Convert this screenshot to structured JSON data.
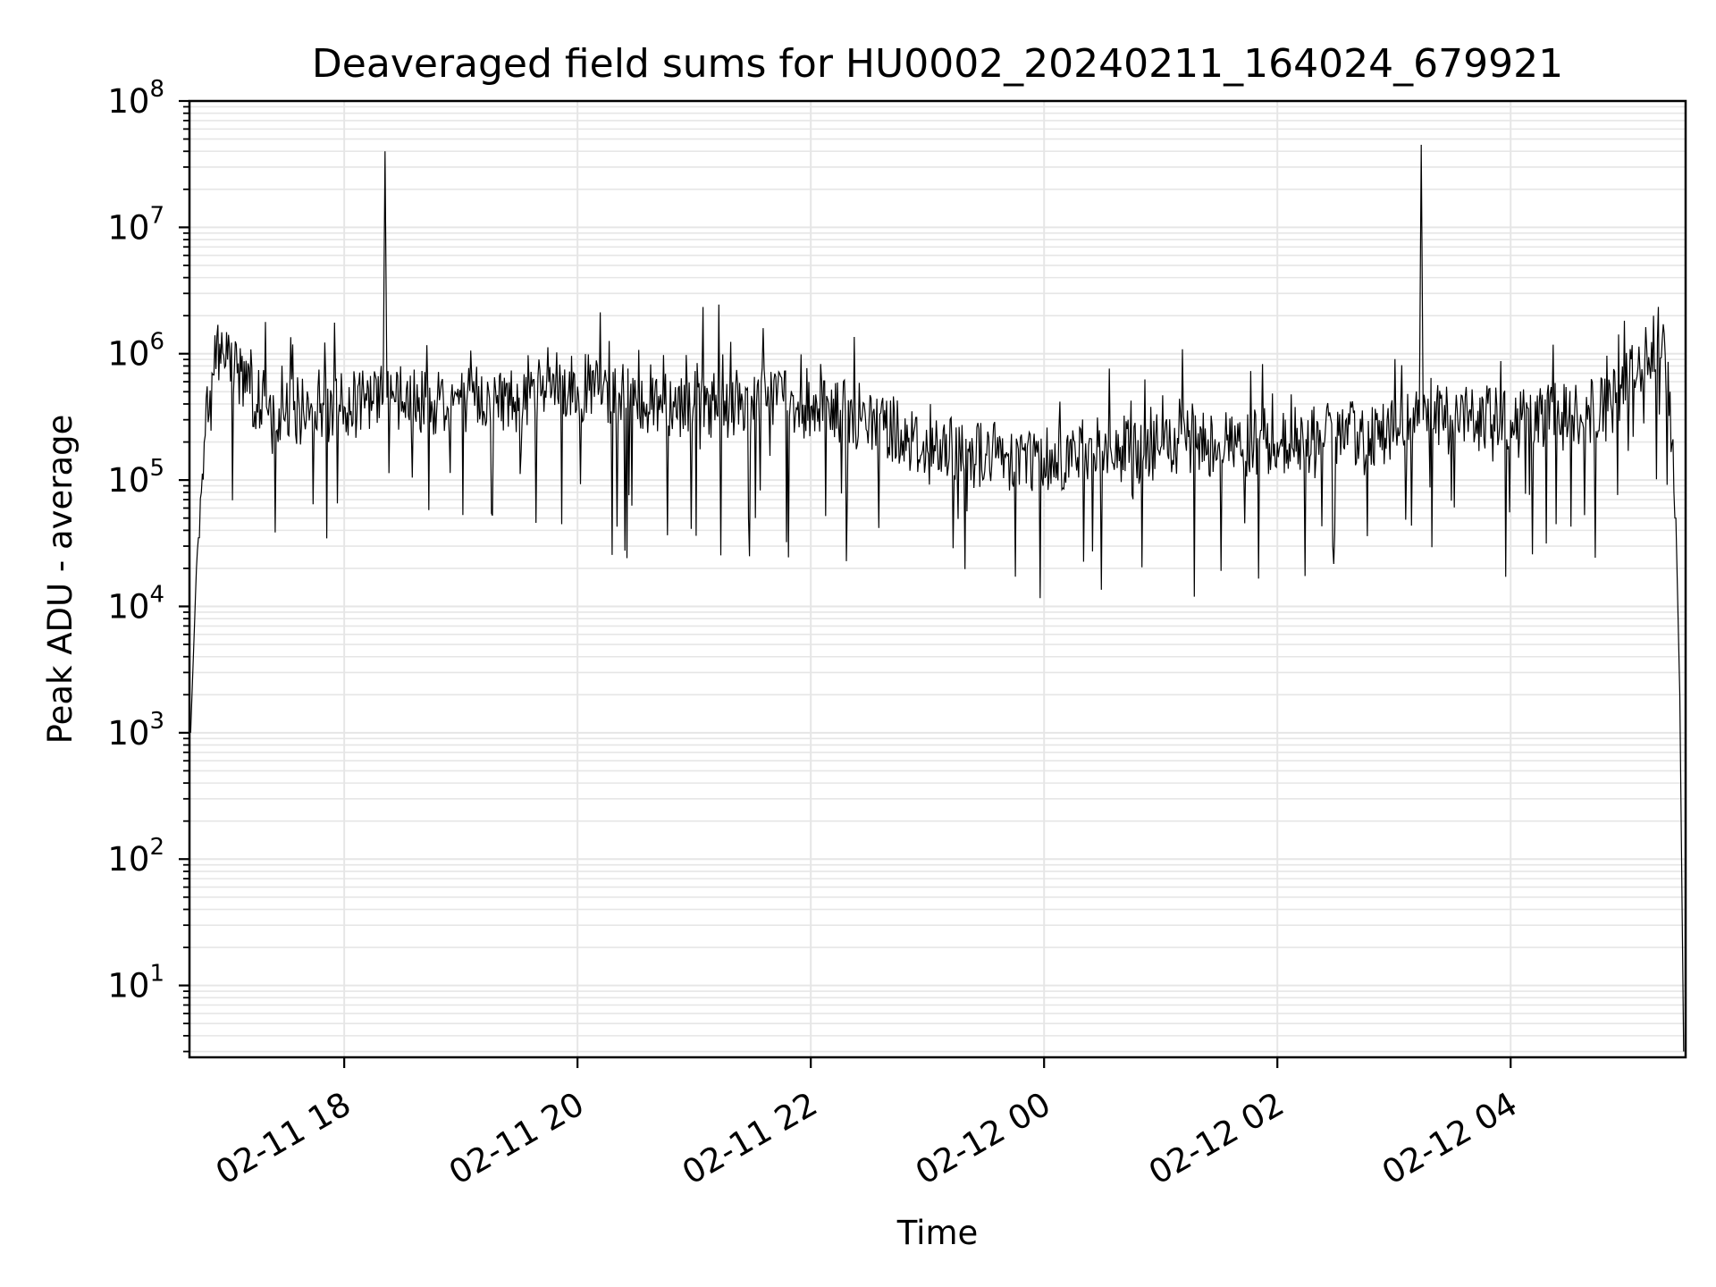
{
  "chart_data": {
    "type": "line",
    "title": "Deaveraged field sums for HU0002_20240211_164024_679921",
    "xlabel": "Time",
    "ylabel": "Peak ADU - average",
    "y_scale": "log",
    "ylim": [
      2.7,
      100000000
    ],
    "xlim": [
      "2024-02-11T16:40:24",
      "2024-02-12T05:30:00"
    ],
    "x_ticks": [
      "02-11 18",
      "02-11 20",
      "02-11 22",
      "02-12 00",
      "02-12 02",
      "02-12 04"
    ],
    "x_tick_times": [
      "2024-02-11T18:00:00",
      "2024-02-11T20:00:00",
      "2024-02-11T22:00:00",
      "2024-02-12T00:00:00",
      "2024-02-12T02:00:00",
      "2024-02-12T04:00:00"
    ],
    "y_ticks": [
      {
        "base": "10",
        "exp": "1",
        "value": 10
      },
      {
        "base": "10",
        "exp": "2",
        "value": 100
      },
      {
        "base": "10",
        "exp": "3",
        "value": 1000
      },
      {
        "base": "10",
        "exp": "4",
        "value": 10000
      },
      {
        "base": "10",
        "exp": "5",
        "value": 100000
      },
      {
        "base": "10",
        "exp": "6",
        "value": 1000000
      },
      {
        "base": "10",
        "exp": "7",
        "value": 10000000
      },
      {
        "base": "10",
        "exp": "8",
        "value": 100000000
      }
    ],
    "grid": {
      "major": true,
      "minor": true,
      "color": "#e6e6e6"
    },
    "line_color": "#000000",
    "series": [
      {
        "x": [
          "2024-02-11T16:41:00",
          "2024-02-11T16:44:00",
          "2024-02-11T16:48:00",
          "2024-02-11T16:52:00",
          "2024-02-11T16:56:00",
          "2024-02-11T17:00:00",
          "2024-02-11T17:05:00",
          "2024-02-11T17:10:00",
          "2024-02-11T17:15:00",
          "2024-02-11T17:20:00",
          "2024-02-11T17:30:00",
          "2024-02-11T17:45:00",
          "2024-02-11T18:00:00",
          "2024-02-11T18:15:00",
          "2024-02-11T18:20:00",
          "2024-02-11T18:21:00",
          "2024-02-11T18:22:00",
          "2024-02-11T18:30:00",
          "2024-02-11T18:45:00",
          "2024-02-11T19:00:00",
          "2024-02-11T19:30:00",
          "2024-02-11T20:00:00",
          "2024-02-11T20:30:00",
          "2024-02-11T21:00:00",
          "2024-02-11T21:30:00",
          "2024-02-11T21:40:00",
          "2024-02-11T22:00:00",
          "2024-02-11T22:30:00",
          "2024-02-11T22:45:00",
          "2024-02-11T23:00:00",
          "2024-02-11T23:30:00",
          "2024-02-12T00:00:00",
          "2024-02-12T00:30:00",
          "2024-02-12T01:00:00",
          "2024-02-12T01:30:00",
          "2024-02-12T02:00:00",
          "2024-02-12T02:30:00",
          "2024-02-12T03:00:00",
          "2024-02-12T03:13:00",
          "2024-02-12T03:14:00",
          "2024-02-12T03:15:00",
          "2024-02-12T03:30:00",
          "2024-02-12T04:00:00",
          "2024-02-12T04:30:00",
          "2024-02-12T04:50:00",
          "2024-02-12T05:00:00",
          "2024-02-12T05:10:00",
          "2024-02-12T05:18:00",
          "2024-02-12T05:22:00",
          "2024-02-12T05:25:00",
          "2024-02-12T05:27:00",
          "2024-02-12T05:29:00"
        ],
        "y": [
          1000,
          20000,
          200000,
          700000,
          1200000,
          900000,
          700000,
          500000,
          400000,
          380000,
          350000,
          350000,
          380000,
          400000,
          420000,
          40000000,
          450000,
          420000,
          420000,
          450000,
          450000,
          550000,
          450000,
          400000,
          420000,
          500000,
          380000,
          300000,
          250000,
          170000,
          160000,
          150000,
          170000,
          180000,
          200000,
          200000,
          220000,
          250000,
          280000,
          45000000,
          300000,
          300000,
          300000,
          320000,
          350000,
          600000,
          1100000,
          1300000,
          500000,
          50000,
          2000,
          3
        ]
      }
    ]
  }
}
